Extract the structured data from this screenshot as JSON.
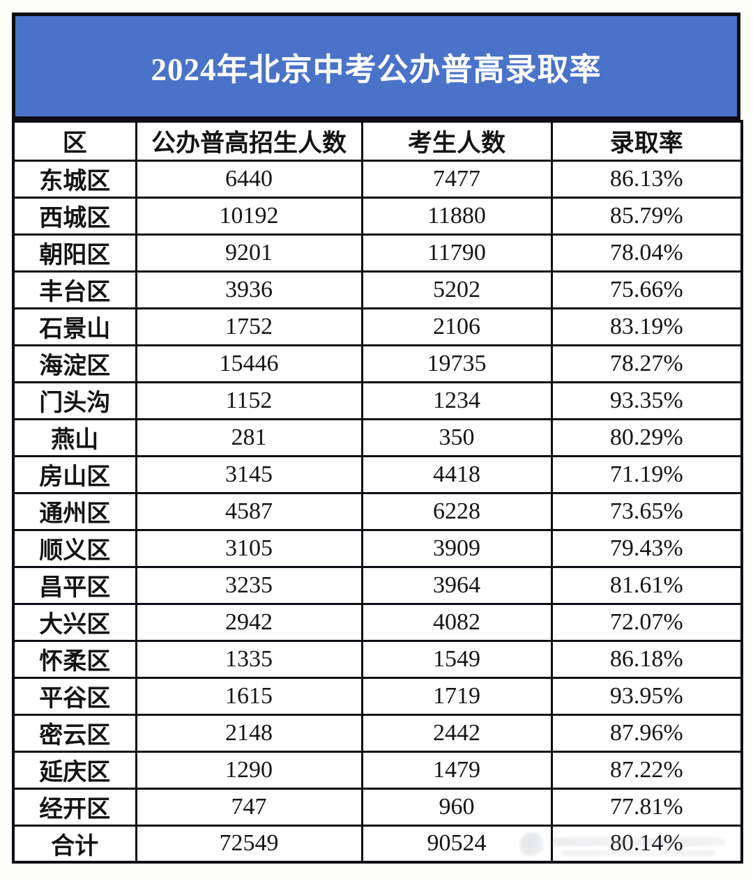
{
  "page": {
    "title": "2024年北京中考公办普高录取率"
  },
  "colors": {
    "banner_blue": "#4a72c8",
    "border_black": "#0d0d14",
    "title_text": "#ffffff",
    "body_text": "#141414",
    "table_background": "#ffffff"
  },
  "chart_data": {
    "type": "table",
    "title": "2024年北京中考公办普高录取率",
    "columns": [
      "区",
      "公办普高招生人数",
      "考生人数",
      "录取率"
    ],
    "rows": [
      [
        "东城区",
        6440,
        7477,
        "86.13%"
      ],
      [
        "西城区",
        10192,
        11880,
        "85.79%"
      ],
      [
        "朝阳区",
        9201,
        11790,
        "78.04%"
      ],
      [
        "丰台区",
        3936,
        5202,
        "75.66%"
      ],
      [
        "石景山",
        1752,
        2106,
        "83.19%"
      ],
      [
        "海淀区",
        15446,
        19735,
        "78.27%"
      ],
      [
        "门头沟",
        1152,
        1234,
        "93.35%"
      ],
      [
        "燕山",
        281,
        350,
        "80.29%"
      ],
      [
        "房山区",
        3145,
        4418,
        "71.19%"
      ],
      [
        "通州区",
        4587,
        6228,
        "73.65%"
      ],
      [
        "顺义区",
        3105,
        3909,
        "79.43%"
      ],
      [
        "昌平区",
        3235,
        3964,
        "81.61%"
      ],
      [
        "大兴区",
        2942,
        4082,
        "72.07%"
      ],
      [
        "怀柔区",
        1335,
        1549,
        "86.18%"
      ],
      [
        "平谷区",
        1615,
        1719,
        "93.95%"
      ],
      [
        "密云区",
        2148,
        2442,
        "87.96%"
      ],
      [
        "延庆区",
        1290,
        1479,
        "87.22%"
      ],
      [
        "经开区",
        747,
        960,
        "77.81%"
      ],
      [
        "合计",
        72549,
        90524,
        "80.14%"
      ]
    ],
    "total_row_label": "合计",
    "layout": {
      "grid": "on",
      "header_position": "top",
      "title_position": "banner-top"
    }
  }
}
